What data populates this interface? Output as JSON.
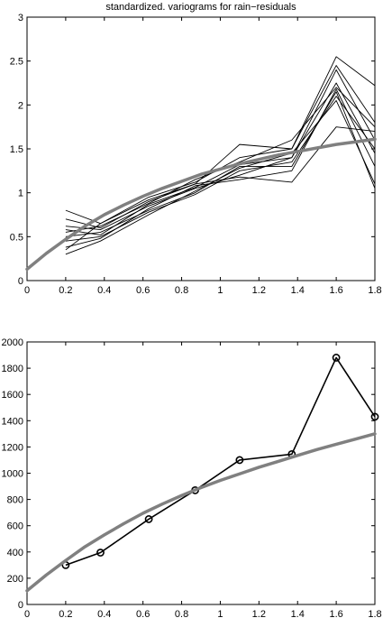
{
  "chart_data": [
    {
      "type": "line",
      "title": "standardized. variograms for rain−residuals",
      "xlabel": "",
      "ylabel": "",
      "xlim": [
        0,
        1.8
      ],
      "ylim": [
        0,
        3
      ],
      "x_ticks": [
        "0",
        "0.2",
        "0.4",
        "0.6",
        "0.8",
        "1",
        "1.2",
        "1.4",
        "1.6",
        "1.8"
      ],
      "y_ticks": [
        "0",
        "0.5",
        "1",
        "1.5",
        "2",
        "2.5",
        "3"
      ],
      "grid": false,
      "x": [
        0.2,
        0.38,
        0.63,
        0.87,
        1.1,
        1.37,
        1.6,
        1.8
      ],
      "series": [
        {
          "values": [
            0.8,
            0.65,
            0.95,
            1.12,
            1.4,
            1.5,
            2.55,
            2.22
          ]
        },
        {
          "values": [
            0.7,
            0.6,
            0.9,
            1.1,
            1.55,
            1.5,
            2.45,
            1.8
          ]
        },
        {
          "values": [
            0.62,
            0.58,
            0.85,
            1.05,
            1.2,
            1.4,
            2.4,
            1.6
          ]
        },
        {
          "values": [
            0.55,
            0.62,
            0.88,
            1.15,
            1.35,
            1.6,
            2.2,
            1.75
          ]
        },
        {
          "values": [
            0.5,
            0.55,
            0.8,
            1.0,
            1.3,
            1.3,
            2.15,
            1.05
          ]
        },
        {
          "values": [
            0.45,
            0.5,
            0.78,
            0.98,
            1.25,
            1.35,
            2.1,
            1.5
          ]
        },
        {
          "values": [
            0.38,
            0.48,
            0.82,
            1.08,
            1.15,
            1.25,
            2.18,
            1.3
          ]
        },
        {
          "values": [
            0.3,
            0.45,
            0.75,
            1.02,
            1.28,
            1.45,
            2.05,
            1.1
          ]
        },
        {
          "values": [
            0.35,
            0.65,
            0.92,
            1.1,
            1.18,
            1.12,
            1.75,
            1.7
          ]
        },
        {
          "values": [
            0.58,
            0.52,
            0.87,
            1.06,
            1.32,
            1.4,
            2.25,
            1.45
          ]
        }
      ],
      "fit_curve": {
        "x": [
          0,
          0.1,
          0.2,
          0.3,
          0.4,
          0.5,
          0.6,
          0.7,
          0.8,
          0.9,
          1.0,
          1.1,
          1.2,
          1.3,
          1.4,
          1.5,
          1.6,
          1.7,
          1.8
        ],
        "values": [
          0.13,
          0.31,
          0.47,
          0.62,
          0.75,
          0.86,
          0.96,
          1.05,
          1.13,
          1.21,
          1.27,
          1.33,
          1.38,
          1.43,
          1.47,
          1.51,
          1.55,
          1.58,
          1.61
        ]
      },
      "colors": {
        "series": "#000000",
        "fit": "#808080"
      }
    },
    {
      "type": "line",
      "title": "",
      "xlabel": "",
      "ylabel": "",
      "xlim": [
        0,
        1.8
      ],
      "ylim": [
        0,
        2000
      ],
      "x_ticks": [
        "0",
        "0.2",
        "0.4",
        "0.6",
        "0.8",
        "1",
        "1.2",
        "1.4",
        "1.6",
        "1.8"
      ],
      "y_ticks": [
        "0",
        "200",
        "400",
        "600",
        "800",
        "1000",
        "1200",
        "1400",
        "1600",
        "1800",
        "2000"
      ],
      "grid": false,
      "x": [
        0.2,
        0.38,
        0.63,
        0.87,
        1.1,
        1.37,
        1.6,
        1.8
      ],
      "series": [
        {
          "values": [
            300,
            395,
            650,
            870,
            1100,
            1145,
            1880,
            1430
          ],
          "markers": "circle"
        }
      ],
      "fit_curve": {
        "x": [
          0,
          0.1,
          0.2,
          0.3,
          0.4,
          0.5,
          0.6,
          0.7,
          0.8,
          0.9,
          1.0,
          1.1,
          1.2,
          1.3,
          1.4,
          1.5,
          1.6,
          1.7,
          1.8
        ],
        "values": [
          105,
          225,
          335,
          440,
          530,
          615,
          695,
          765,
          830,
          890,
          945,
          995,
          1045,
          1090,
          1135,
          1180,
          1220,
          1260,
          1300
        ]
      },
      "colors": {
        "series": "#000000",
        "fit": "#808080"
      }
    }
  ]
}
